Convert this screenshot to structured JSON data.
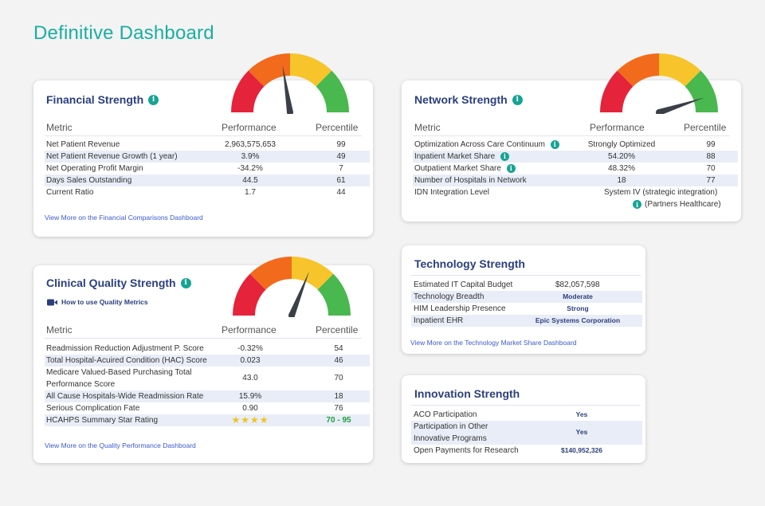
{
  "title": "Definitive Dashboard",
  "financial": {
    "title": "Financial Strength",
    "headers": {
      "metric": "Metric",
      "performance": "Performance",
      "percentile": "Percentile"
    },
    "rows": [
      {
        "metric": "Net Patient Revenue",
        "performance": "2,963,575,653",
        "percentile": "99"
      },
      {
        "metric": "Net Patient Revenue Growth (1 year)",
        "performance": "3.9%",
        "percentile": "49"
      },
      {
        "metric": "Net Operating Profit Margin",
        "performance": "-34.2%",
        "percentile": "7"
      },
      {
        "metric": "Days Sales Outstanding",
        "performance": "44.5",
        "percentile": "61"
      },
      {
        "metric": "Current Ratio",
        "performance": "1.7",
        "percentile": "44"
      }
    ],
    "link": "View More on the Financial Comparisons Dashboard",
    "gauge_level": 0.45
  },
  "network": {
    "title": "Network Strength",
    "headers": {
      "metric": "Metric",
      "performance": "Performance",
      "percentile": "Percentile"
    },
    "rows": [
      {
        "metric": "Optimization Across Care Continuum",
        "performance": "Strongly Optimized",
        "percentile": "99"
      },
      {
        "metric": "Inpatient Market Share",
        "performance": "54.20%",
        "percentile": "88"
      },
      {
        "metric": "Outpatient Market Share",
        "performance": "48.32%",
        "percentile": "70"
      },
      {
        "metric": "Number of Hospitals in Network",
        "performance": "18",
        "percentile": "77"
      },
      {
        "metric": "IDN Integration Level",
        "performance": "System IV (strategic integration)",
        "percentile": ""
      }
    ],
    "partner_note": "(Partners Healthcare)",
    "gauge_level": 0.9
  },
  "clinical": {
    "title": "Clinical Quality Strength",
    "video_link": "How to use Quality Metrics",
    "headers": {
      "metric": "Metric",
      "performance": "Performance",
      "percentile": "Percentile"
    },
    "rows": [
      {
        "metric": "Readmission Reduction Adjustment P. Score",
        "performance": "-0.32%",
        "percentile": "54"
      },
      {
        "metric": "Total Hospital-Acuired Condition (HAC) Score",
        "performance": "0.023",
        "percentile": "46"
      },
      {
        "metric_line1": "Medicare Valued-Based Purchasing Total",
        "metric_line2": "Performance Score",
        "performance": "43.0",
        "percentile": "70"
      },
      {
        "metric": "All Cause Hospitals-Wide Readmission Rate",
        "performance": "15.9%",
        "percentile": "18"
      },
      {
        "metric": "Serious Complication Fate",
        "performance": "0.90",
        "percentile": "76"
      },
      {
        "metric": "HCAHPS Summary Star Rating",
        "performance": "★★★★",
        "percentile": "70 - 95"
      }
    ],
    "link": "View More on the Quality Performance Dashboard",
    "gauge_level": 0.62
  },
  "technology": {
    "title": "Technology Strength",
    "rows": [
      {
        "metric": "Estimated IT Capital Budget",
        "value": "$82,057,598"
      },
      {
        "metric": "Technology Breadth",
        "value": "Moderate"
      },
      {
        "metric": "HIM Leadership Presence",
        "value": "Strong"
      },
      {
        "metric": "Inpatient EHR",
        "value": "Epic Systems Corporation"
      }
    ],
    "link": "View More on the Technology Market Share Dashboard"
  },
  "innovation": {
    "title": "Innovation Strength",
    "rows": [
      {
        "metric": "ACO Participation",
        "value": "Yes"
      },
      {
        "metric_line1": "Participation in Other",
        "metric_line2": "Innovative Programs",
        "value": "Yes"
      },
      {
        "metric": "Open Payments for Research",
        "value": "$140,952,326"
      }
    ]
  },
  "colors": {
    "red": "#e5233a",
    "orange": "#f26a1b",
    "yellow": "#f7c52b",
    "green": "#49b84f",
    "teal": "#1aaea1",
    "navy": "#2b3f7e"
  }
}
